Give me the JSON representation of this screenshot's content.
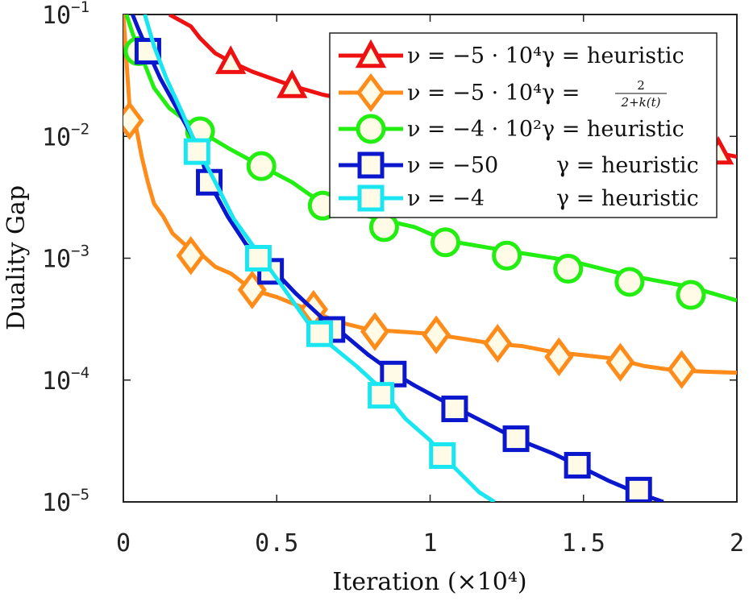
{
  "chart_data": {
    "type": "line",
    "xlabel": "Iteration (×10⁴)",
    "ylabel": "Duality Gap",
    "xlim": [
      0,
      2
    ],
    "ylim": [
      1e-05,
      0.1
    ],
    "yscale": "log",
    "x_ticks": [
      {
        "value": 0,
        "label": "0"
      },
      {
        "value": 0.5,
        "label": "0.5"
      },
      {
        "value": 1,
        "label": "1"
      },
      {
        "value": 1.5,
        "label": "1.5"
      },
      {
        "value": 2,
        "label": "2"
      }
    ],
    "y_ticks": [
      {
        "value": 1e-05,
        "base": "10",
        "exp": "−5"
      },
      {
        "value": 0.0001,
        "base": "10",
        "exp": "−4"
      },
      {
        "value": 0.001,
        "base": "10",
        "exp": "−3"
      },
      {
        "value": 0.01,
        "base": "10",
        "exp": "−2"
      },
      {
        "value": 0.1,
        "base": "10",
        "exp": "−1"
      }
    ],
    "grid": false,
    "legend_position": "top-right",
    "series": [
      {
        "id": "s1",
        "legend": {
          "nu": "ν = −5 · 10⁴",
          "gamma": "γ = heuristic"
        },
        "color": "#ee1111",
        "marker": "triangle",
        "x": [
          0.15,
          0.22,
          0.25,
          0.3,
          0.35,
          0.42,
          0.55,
          0.65,
          0.8,
          0.95,
          1.1,
          1.25,
          1.4,
          1.55,
          1.7,
          1.85,
          1.95,
          2.0
        ],
        "y": [
          0.1,
          0.08,
          0.064,
          0.048,
          0.041,
          0.034,
          0.026,
          0.022,
          0.0185,
          0.016,
          0.014,
          0.0125,
          0.011,
          0.0098,
          0.0088,
          0.0079,
          0.0072,
          0.0068
        ],
        "marker_x": [
          0.35,
          0.55,
          1.94
        ],
        "marker_y": [
          0.041,
          0.026,
          0.0074
        ]
      },
      {
        "id": "s2",
        "legend": {
          "nu": "ν = −5 · 10⁴",
          "gamma_prefix": "γ =",
          "frac_num": "2",
          "frac_den": "2+k(t)"
        },
        "color": "#ff8c1a",
        "marker": "diamond",
        "x": [
          0.0,
          0.02,
          0.04,
          0.06,
          0.08,
          0.1,
          0.13,
          0.16,
          0.2,
          0.25,
          0.3,
          0.35,
          0.42,
          0.5,
          0.6,
          0.7,
          0.8,
          0.9,
          1.0,
          1.1,
          1.2,
          1.3,
          1.4,
          1.5,
          1.6,
          1.7,
          1.8,
          1.9,
          2.0
        ],
        "y": [
          0.1,
          0.018,
          0.0125,
          0.0068,
          0.0042,
          0.0028,
          0.0022,
          0.0016,
          0.0013,
          0.0011,
          0.00085,
          0.00075,
          0.00055,
          0.00048,
          0.00038,
          0.0003,
          0.00026,
          0.00025,
          0.00024,
          0.00022,
          0.0002,
          0.00019,
          0.00017,
          0.00016,
          0.00015,
          0.00013,
          0.00012,
          0.000117,
          0.000115
        ],
        "marker_x": [
          0.02,
          0.22,
          0.42,
          0.62,
          0.82,
          1.02,
          1.22,
          1.42,
          1.62,
          1.82
        ],
        "marker_y": [
          0.0135,
          0.00105,
          0.00055,
          0.00038,
          0.00025,
          0.000235,
          0.0002,
          0.000155,
          0.00014,
          0.000122
        ]
      },
      {
        "id": "s3",
        "legend": {
          "nu": "ν = −4 · 10²",
          "gamma": "γ = heuristic"
        },
        "color": "#22ee11",
        "marker": "circle",
        "x": [
          0.01,
          0.03,
          0.06,
          0.1,
          0.15,
          0.25,
          0.35,
          0.45,
          0.55,
          0.65,
          0.8,
          0.95,
          1.05,
          1.25,
          1.45,
          1.65,
          1.85,
          2.0
        ],
        "y": [
          0.1,
          0.07,
          0.045,
          0.025,
          0.017,
          0.011,
          0.0078,
          0.0057,
          0.0042,
          0.0028,
          0.0022,
          0.0018,
          0.0014,
          0.00115,
          0.00096,
          0.00072,
          0.00058,
          0.00045
        ],
        "marker_x": [
          0.05,
          0.25,
          0.45,
          0.65,
          0.85,
          1.05,
          1.25,
          1.45,
          1.65,
          1.85
        ],
        "marker_y": [
          0.05,
          0.011,
          0.0057,
          0.0027,
          0.0018,
          0.00135,
          0.00105,
          0.00082,
          0.00064,
          0.0005
        ]
      },
      {
        "id": "s4",
        "legend": {
          "nu": "ν = −50",
          "gamma": "γ = heuristic"
        },
        "color": "#0a17cc",
        "marker": "square",
        "x": [
          0.03,
          0.05,
          0.08,
          0.12,
          0.18,
          0.24,
          0.28,
          0.34,
          0.4,
          0.48,
          0.56,
          0.65,
          0.7,
          0.8,
          0.88,
          0.95,
          1.08,
          1.2,
          1.28,
          1.4,
          1.48,
          1.58,
          1.67,
          1.76
        ],
        "y": [
          0.1,
          0.075,
          0.05,
          0.03,
          0.016,
          0.0085,
          0.0042,
          0.0022,
          0.0013,
          0.00085,
          0.00052,
          0.00032,
          0.00026,
          0.00016,
          0.000115,
          9e-05,
          6e-05,
          4.2e-05,
          3.3e-05,
          2.5e-05,
          2e-05,
          1.5e-05,
          1.2e-05,
          1e-05
        ],
        "marker_x": [
          0.08,
          0.28,
          0.48,
          0.68,
          0.88,
          1.08,
          1.28,
          1.48,
          1.68
        ],
        "marker_y": [
          0.05,
          0.0042,
          0.00078,
          0.00026,
          0.000112,
          5.8e-05,
          3.3e-05,
          2e-05,
          1.25e-05
        ]
      },
      {
        "id": "s5",
        "legend": {
          "nu": "ν = −4",
          "gamma": "γ = heuristic"
        },
        "color": "#19e6f0",
        "marker": "square",
        "x": [
          0.07,
          0.1,
          0.14,
          0.19,
          0.24,
          0.3,
          0.36,
          0.44,
          0.52,
          0.6,
          0.68,
          0.76,
          0.84,
          0.92,
          1.0,
          1.04,
          1.1,
          1.16,
          1.21
        ],
        "y": [
          0.1,
          0.055,
          0.03,
          0.016,
          0.0082,
          0.0042,
          0.0021,
          0.0011,
          0.00058,
          0.0003,
          0.00019,
          0.00013,
          8.5e-05,
          4.8e-05,
          3.2e-05,
          2.4e-05,
          1.7e-05,
          1.2e-05,
          1e-05
        ],
        "marker_x": [
          0.24,
          0.44,
          0.64,
          0.84,
          1.04
        ],
        "marker_y": [
          0.0075,
          0.001,
          0.00024,
          7.5e-05,
          2.4e-05
        ]
      }
    ]
  }
}
